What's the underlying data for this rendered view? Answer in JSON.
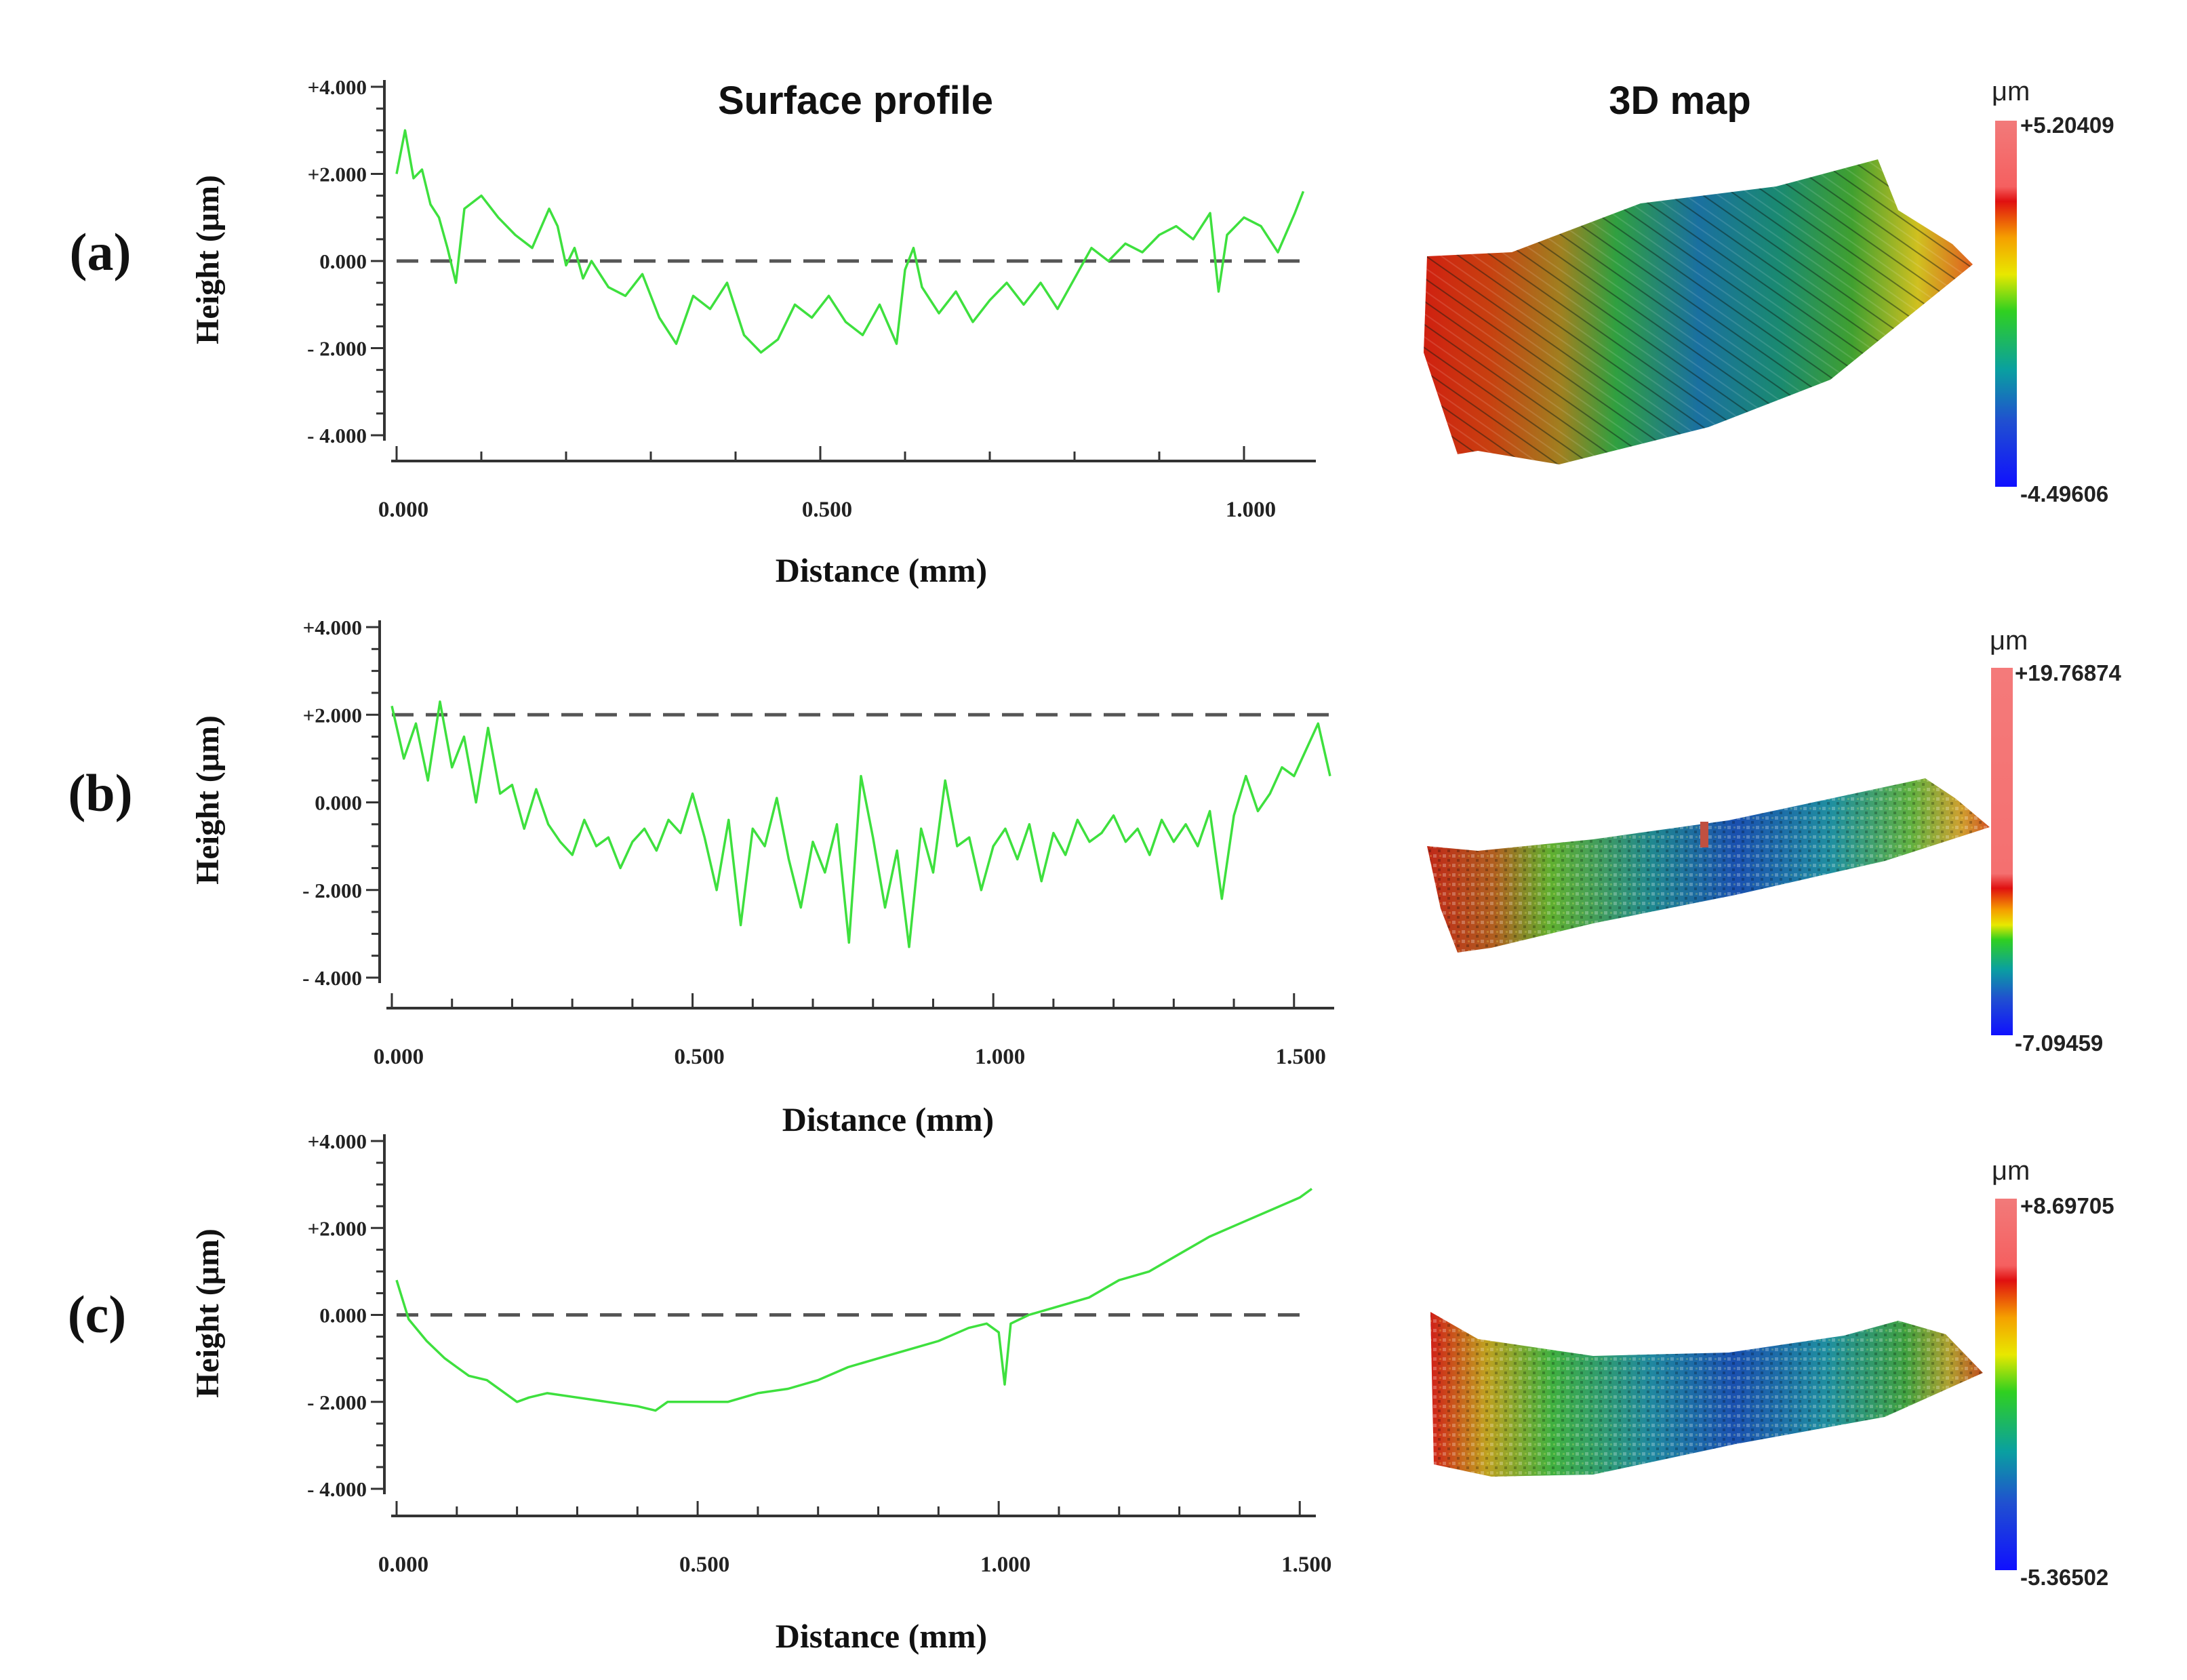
{
  "figure": {
    "titles": {
      "profile": "Surface profile",
      "map": "3D map"
    },
    "colors": {
      "profile_line": "#3ee03e",
      "axis": "#333333",
      "dashed": "#555555"
    }
  },
  "chart_data": [
    {
      "type": "line",
      "panel_label": "(a)",
      "title": "Surface profile",
      "xlabel": "Distance (mm)",
      "ylabel": "Height (μm)",
      "xlim": [
        0,
        1.08
      ],
      "ylim": [
        -4,
        4
      ],
      "xticks": [
        "0.000",
        "0.500",
        "1.000"
      ],
      "xtick_values": [
        0,
        0.5,
        1.0
      ],
      "yticks": [
        "+4.000",
        "+2.000",
        "0.000",
        "- 2.000",
        "- 4.000"
      ],
      "ytick_values": [
        4,
        2,
        0,
        -2,
        -4
      ],
      "reference_line": 0,
      "series": [
        {
          "name": "profile",
          "x": [
            0.0,
            0.01,
            0.02,
            0.03,
            0.04,
            0.05,
            0.06,
            0.07,
            0.08,
            0.1,
            0.12,
            0.14,
            0.16,
            0.18,
            0.19,
            0.2,
            0.21,
            0.22,
            0.23,
            0.25,
            0.27,
            0.29,
            0.31,
            0.33,
            0.35,
            0.37,
            0.39,
            0.41,
            0.43,
            0.45,
            0.47,
            0.49,
            0.51,
            0.53,
            0.55,
            0.57,
            0.59,
            0.6,
            0.61,
            0.62,
            0.64,
            0.66,
            0.68,
            0.7,
            0.72,
            0.74,
            0.76,
            0.78,
            0.8,
            0.82,
            0.84,
            0.86,
            0.88,
            0.9,
            0.92,
            0.94,
            0.96,
            0.97,
            0.98,
            1.0,
            1.02,
            1.04,
            1.06,
            1.07
          ],
          "values": [
            2.0,
            3.0,
            1.9,
            2.1,
            1.3,
            1.0,
            0.3,
            -0.5,
            1.2,
            1.5,
            1.0,
            0.6,
            0.3,
            1.2,
            0.8,
            -0.1,
            0.3,
            -0.4,
            0.0,
            -0.6,
            -0.8,
            -0.3,
            -1.3,
            -1.9,
            -0.8,
            -1.1,
            -0.5,
            -1.7,
            -2.1,
            -1.8,
            -1.0,
            -1.3,
            -0.8,
            -1.4,
            -1.7,
            -1.0,
            -1.9,
            -0.2,
            0.3,
            -0.6,
            -1.2,
            -0.7,
            -1.4,
            -0.9,
            -0.5,
            -1.0,
            -0.5,
            -1.1,
            -0.4,
            0.3,
            0.0,
            0.4,
            0.2,
            0.6,
            0.8,
            0.5,
            1.1,
            -0.7,
            0.6,
            1.0,
            0.8,
            0.2,
            1.1,
            1.6
          ]
        }
      ],
      "colorbar": {
        "unit": "μm",
        "max": "+5.20409",
        "min": "-4.49606"
      }
    },
    {
      "type": "line",
      "panel_label": "(b)",
      "title": "",
      "xlabel": "Distance (mm)",
      "ylabel": "Height (μm)",
      "xlim": [
        0,
        1.56
      ],
      "ylim": [
        -4,
        4
      ],
      "xticks": [
        "0.000",
        "0.500",
        "1.000",
        "1.500"
      ],
      "xtick_values": [
        0,
        0.5,
        1.0,
        1.5
      ],
      "yticks": [
        "+4.000",
        "+2.000",
        "0.000",
        "- 2.000",
        "- 4.000"
      ],
      "ytick_values": [
        4,
        2,
        0,
        -2,
        -4
      ],
      "reference_line": 2,
      "series": [
        {
          "name": "profile",
          "x": [
            0.0,
            0.02,
            0.04,
            0.06,
            0.08,
            0.1,
            0.12,
            0.14,
            0.16,
            0.18,
            0.2,
            0.22,
            0.24,
            0.26,
            0.28,
            0.3,
            0.32,
            0.34,
            0.36,
            0.38,
            0.4,
            0.42,
            0.44,
            0.46,
            0.48,
            0.5,
            0.52,
            0.54,
            0.56,
            0.58,
            0.6,
            0.62,
            0.64,
            0.66,
            0.68,
            0.7,
            0.72,
            0.74,
            0.76,
            0.78,
            0.8,
            0.82,
            0.84,
            0.86,
            0.88,
            0.9,
            0.92,
            0.94,
            0.96,
            0.98,
            1.0,
            1.02,
            1.04,
            1.06,
            1.08,
            1.1,
            1.12,
            1.14,
            1.16,
            1.18,
            1.2,
            1.22,
            1.24,
            1.26,
            1.28,
            1.3,
            1.32,
            1.34,
            1.36,
            1.38,
            1.4,
            1.42,
            1.44,
            1.46,
            1.48,
            1.5,
            1.52,
            1.54,
            1.56
          ],
          "values": [
            2.2,
            1.0,
            1.8,
            0.5,
            2.3,
            0.8,
            1.5,
            0.0,
            1.7,
            0.2,
            0.4,
            -0.6,
            0.3,
            -0.5,
            -0.9,
            -1.2,
            -0.4,
            -1.0,
            -0.8,
            -1.5,
            -0.9,
            -0.6,
            -1.1,
            -0.4,
            -0.7,
            0.2,
            -0.8,
            -2.0,
            -0.4,
            -2.8,
            -0.6,
            -1.0,
            0.1,
            -1.3,
            -2.4,
            -0.9,
            -1.6,
            -0.5,
            -3.2,
            0.6,
            -0.8,
            -2.4,
            -1.1,
            -3.3,
            -0.6,
            -1.6,
            0.5,
            -1.0,
            -0.8,
            -2.0,
            -1.0,
            -0.6,
            -1.3,
            -0.5,
            -1.8,
            -0.7,
            -1.2,
            -0.4,
            -0.9,
            -0.7,
            -0.3,
            -0.9,
            -0.6,
            -1.2,
            -0.4,
            -0.9,
            -0.5,
            -1.0,
            -0.2,
            -2.2,
            -0.3,
            0.6,
            -0.2,
            0.2,
            0.8,
            0.6,
            1.2,
            1.8,
            0.6
          ]
        }
      ],
      "colorbar": {
        "unit": "μm",
        "max": "+19.76874",
        "min": "-7.09459"
      }
    },
    {
      "type": "line",
      "panel_label": "(c)",
      "title": "",
      "xlabel": "Distance (mm)",
      "ylabel": "Height (μm)",
      "xlim": [
        0,
        1.52
      ],
      "ylim": [
        -4,
        4
      ],
      "xticks": [
        "0.000",
        "0.500",
        "1.000",
        "1.500"
      ],
      "xtick_values": [
        0,
        0.5,
        1.0,
        1.5
      ],
      "yticks": [
        "+4.000",
        "+2.000",
        "0.000",
        "- 2.000",
        "- 4.000"
      ],
      "ytick_values": [
        4,
        2,
        0,
        -2,
        -4
      ],
      "reference_line": 0,
      "series": [
        {
          "name": "profile",
          "x": [
            0.0,
            0.02,
            0.05,
            0.08,
            0.1,
            0.12,
            0.15,
            0.18,
            0.2,
            0.22,
            0.25,
            0.3,
            0.35,
            0.4,
            0.43,
            0.45,
            0.5,
            0.55,
            0.6,
            0.65,
            0.7,
            0.75,
            0.8,
            0.85,
            0.9,
            0.95,
            0.98,
            1.0,
            1.01,
            1.02,
            1.05,
            1.1,
            1.15,
            1.2,
            1.25,
            1.3,
            1.35,
            1.4,
            1.45,
            1.5,
            1.52
          ],
          "values": [
            0.8,
            -0.1,
            -0.6,
            -1.0,
            -1.2,
            -1.4,
            -1.5,
            -1.8,
            -2.0,
            -1.9,
            -1.8,
            -1.9,
            -2.0,
            -2.1,
            -2.2,
            -2.0,
            -2.0,
            -2.0,
            -1.8,
            -1.7,
            -1.5,
            -1.2,
            -1.0,
            -0.8,
            -0.6,
            -0.3,
            -0.2,
            -0.4,
            -1.6,
            -0.2,
            0.0,
            0.2,
            0.4,
            0.8,
            1.0,
            1.4,
            1.8,
            2.1,
            2.4,
            2.7,
            2.9
          ]
        }
      ],
      "colorbar": {
        "unit": "μm",
        "max": "+8.69705",
        "min": "-5.36502"
      }
    }
  ]
}
